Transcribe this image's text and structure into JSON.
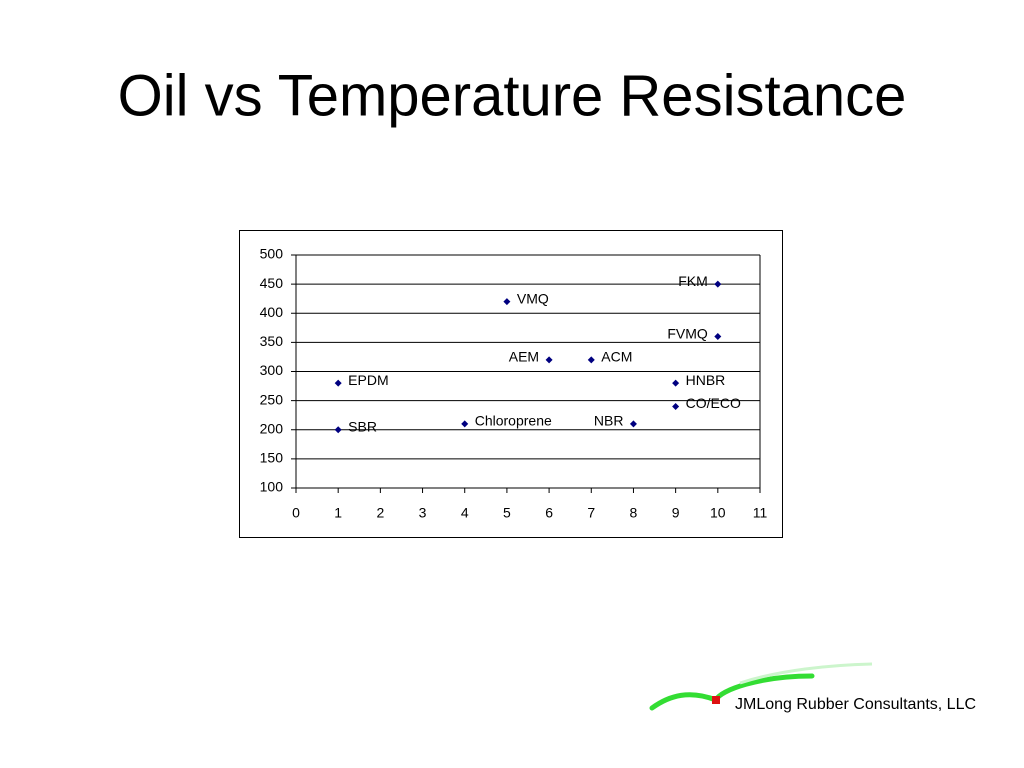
{
  "slide": {
    "title": "Oil vs Temperature Resistance"
  },
  "chart_data": {
    "type": "scatter",
    "x": [
      1,
      1,
      4,
      5,
      6,
      7,
      8,
      9,
      9,
      10,
      10
    ],
    "values": [
      200,
      280,
      210,
      420,
      320,
      320,
      210,
      280,
      240,
      450,
      360
    ],
    "point_labels": [
      "SBR",
      "EPDM",
      "Chloroprene",
      "VMQ",
      "AEM",
      "ACM",
      "NBR",
      "HNBR",
      "CO/ECO",
      "FKM",
      "FVMQ"
    ],
    "color": "#000080",
    "xlim": [
      0,
      11
    ],
    "xticks": [
      0,
      1,
      2,
      3,
      4,
      5,
      6,
      7,
      8,
      9,
      10,
      11
    ],
    "ylim": [
      100,
      500
    ],
    "yticks": [
      100,
      150,
      200,
      250,
      300,
      350,
      400,
      450,
      500
    ],
    "grid": true
  },
  "logo": {
    "text": "JMLong Rubber Consultants, LLC"
  }
}
